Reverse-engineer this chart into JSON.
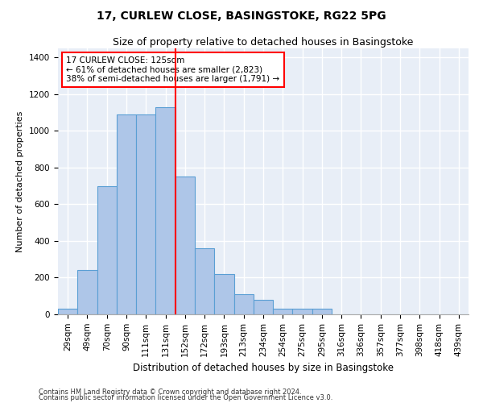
{
  "title": "17, CURLEW CLOSE, BASINGSTOKE, RG22 5PG",
  "subtitle": "Size of property relative to detached houses in Basingstoke",
  "xlabel": "Distribution of detached houses by size in Basingstoke",
  "ylabel": "Number of detached properties",
  "categories": [
    "29sqm",
    "49sqm",
    "70sqm",
    "90sqm",
    "111sqm",
    "131sqm",
    "152sqm",
    "172sqm",
    "193sqm",
    "213sqm",
    "234sqm",
    "254sqm",
    "275sqm",
    "295sqm",
    "316sqm",
    "336sqm",
    "357sqm",
    "377sqm",
    "398sqm",
    "418sqm",
    "439sqm"
  ],
  "values": [
    30,
    240,
    700,
    1090,
    1090,
    1130,
    750,
    360,
    220,
    110,
    80,
    30,
    30,
    30,
    0,
    0,
    0,
    0,
    0,
    0,
    0
  ],
  "bar_color": "#aec6e8",
  "bar_edge_color": "#5a9fd4",
  "vline_color": "red",
  "annotation_text": "17 CURLEW CLOSE: 125sqm\n← 61% of detached houses are smaller (2,823)\n38% of semi-detached houses are larger (1,791) →",
  "annotation_box_color": "white",
  "annotation_box_edge_color": "red",
  "ylim": [
    0,
    1450
  ],
  "yticks": [
    0,
    200,
    400,
    600,
    800,
    1000,
    1200,
    1400
  ],
  "bg_color": "#e8eef7",
  "grid_color": "white",
  "footer1": "Contains HM Land Registry data © Crown copyright and database right 2024.",
  "footer2": "Contains public sector information licensed under the Open Government Licence v3.0.",
  "title_fontsize": 10,
  "subtitle_fontsize": 9,
  "annotation_fontsize": 7.5,
  "ylabel_fontsize": 8,
  "xlabel_fontsize": 8.5,
  "tick_fontsize": 7.5,
  "footer_fontsize": 6
}
